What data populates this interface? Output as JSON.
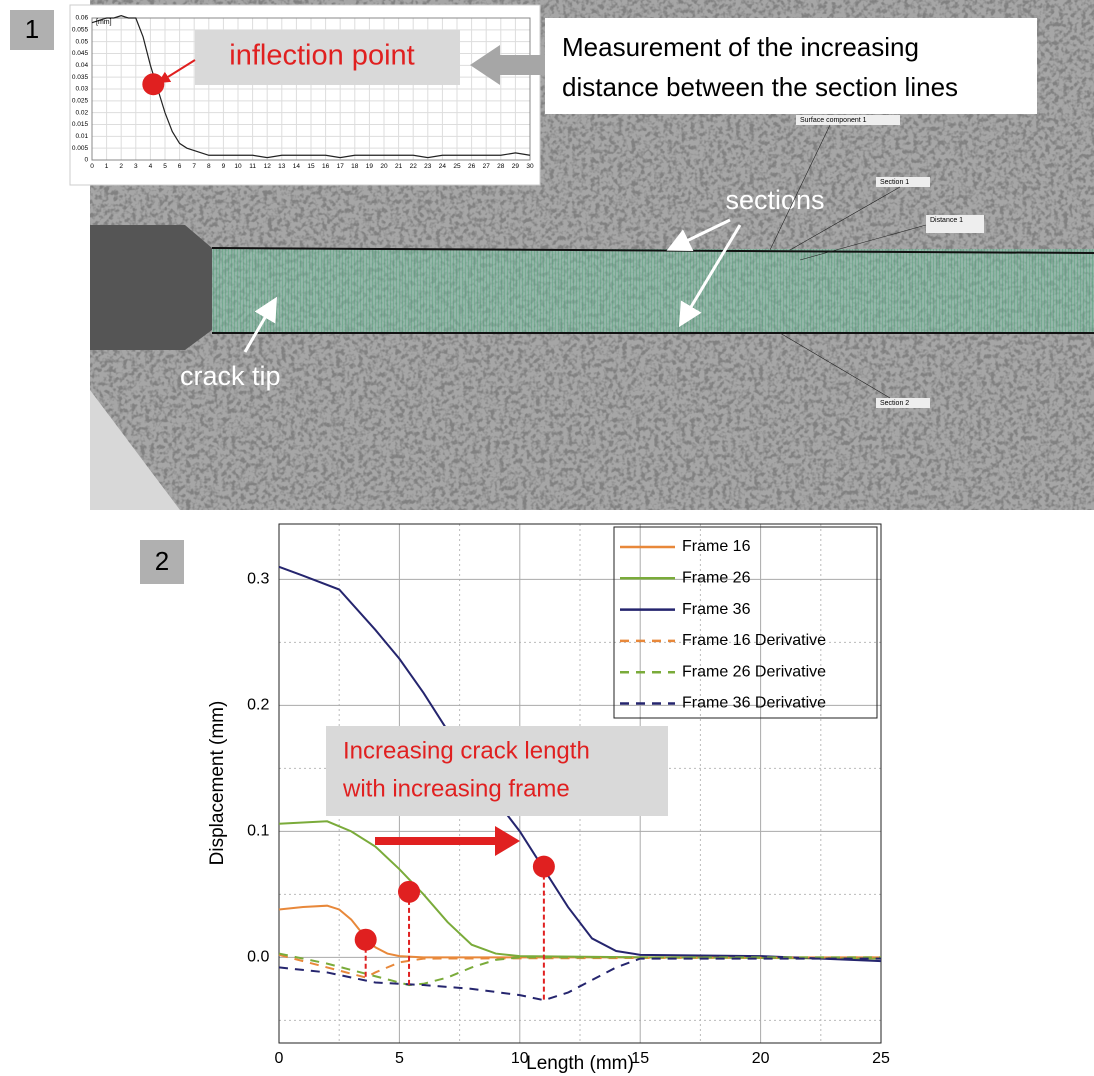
{
  "photo": {
    "panel_label": "1",
    "callout": [
      "Measurement of the increasing",
      "distance between the section lines"
    ],
    "sections_label": "sections",
    "crack_tip_label": "crack tip",
    "tags": [
      "Surface component 1",
      "Section 1",
      "Distance 1",
      "Section 2"
    ]
  },
  "chart_data": [
    {
      "type": "line",
      "ylabel": "[mm]",
      "xlim": [
        0,
        30
      ],
      "ylim": [
        0,
        0.06
      ],
      "xticks": [
        0,
        1,
        2,
        3,
        4,
        5,
        6,
        7,
        8,
        9,
        10,
        11,
        12,
        13,
        14,
        15,
        16,
        17,
        18,
        19,
        20,
        21,
        22,
        23,
        24,
        25,
        26,
        27,
        28,
        29,
        30
      ],
      "yticks": [
        0,
        0.005,
        0.01,
        0.015,
        0.02,
        0.025,
        0.03,
        0.035,
        0.04,
        0.045,
        0.05,
        0.055,
        0.06
      ],
      "grid": true,
      "annotation": "inflection point",
      "marker": {
        "x": 4.2,
        "y": 0.032
      },
      "series": [
        {
          "color": "#222222",
          "dash": false,
          "x": [
            0,
            0.5,
            1,
            1.5,
            2,
            2.5,
            3,
            3.5,
            4,
            4.5,
            5,
            5.5,
            6,
            6.5,
            7,
            7.5,
            8,
            9,
            10,
            11,
            12,
            13,
            14,
            15,
            16,
            17,
            18,
            19,
            20,
            21,
            22,
            23,
            24,
            25,
            26,
            27,
            28,
            29,
            30
          ],
          "values": [
            0.058,
            0.059,
            0.06,
            0.06,
            0.061,
            0.06,
            0.06,
            0.052,
            0.04,
            0.03,
            0.02,
            0.012,
            0.007,
            0.005,
            0.004,
            0.003,
            0.002,
            0.002,
            0.002,
            0.002,
            0.001,
            0.002,
            0.002,
            0.002,
            0.002,
            0.001,
            0.002,
            0.002,
            0.002,
            0.002,
            0.002,
            0.001,
            0.002,
            0.002,
            0.002,
            0.002,
            0.002,
            0.003,
            0.002
          ]
        }
      ]
    },
    {
      "type": "line",
      "panel_label": "2",
      "xlabel": "Length (mm)",
      "ylabel": "Displacement (mm)",
      "xlim": [
        0,
        25
      ],
      "ylim": [
        -0.068,
        0.344
      ],
      "xticks": [
        0,
        5,
        10,
        15,
        20,
        25
      ],
      "yticks": [
        {
          "value": 0,
          "label": "0.0"
        },
        0.1,
        0.2,
        0.3
      ],
      "xminor": [
        2.5,
        7.5,
        12.5,
        17.5,
        22.5
      ],
      "yminor": [
        -0.05,
        0.05,
        0.15,
        0.25
      ],
      "grid": true,
      "annotation": [
        "Increasing crack length",
        "with increasing frame"
      ],
      "markers": [
        {
          "x": 3.6,
          "y": 0.014,
          "drop_to": -0.016
        },
        {
          "x": 5.4,
          "y": 0.052,
          "drop_to": -0.022
        },
        {
          "x": 11,
          "y": 0.072,
          "drop_to": -0.034
        }
      ],
      "series": [
        {
          "name": "Frame 16",
          "color": "#e8883a",
          "dash": false,
          "x": [
            0,
            1,
            2,
            2.5,
            3,
            3.5,
            4,
            4.5,
            5,
            6,
            10,
            25
          ],
          "values": [
            0.038,
            0.04,
            0.041,
            0.038,
            0.03,
            0.018,
            0.008,
            0.003,
            0.001,
            0,
            0,
            0
          ]
        },
        {
          "name": "Frame 26",
          "color": "#7aab3a",
          "dash": false,
          "x": [
            0,
            1,
            2,
            3,
            4,
            5,
            6,
            7,
            8,
            9,
            10,
            15,
            25
          ],
          "values": [
            0.106,
            0.107,
            0.108,
            0.1,
            0.088,
            0.07,
            0.05,
            0.028,
            0.01,
            0.003,
            0.001,
            0,
            -0.001
          ]
        },
        {
          "name": "Frame 36",
          "color": "#25256e",
          "dash": false,
          "x": [
            0,
            1,
            2.5,
            4,
            5,
            6,
            7,
            8,
            9,
            10,
            11,
            12,
            13,
            14,
            15,
            20,
            25
          ],
          "values": [
            0.31,
            0.303,
            0.292,
            0.26,
            0.237,
            0.21,
            0.18,
            0.15,
            0.125,
            0.1,
            0.07,
            0.04,
            0.015,
            0.005,
            0.002,
            0.001,
            -0.003
          ]
        },
        {
          "name": "Frame 16 Derivative",
          "color": "#e8883a",
          "dash": true,
          "x": [
            0,
            1,
            2,
            3,
            3.6,
            4,
            5,
            6,
            25
          ],
          "values": [
            0.002,
            -0.003,
            -0.008,
            -0.013,
            -0.016,
            -0.012,
            -0.004,
            -0.001,
            0
          ]
        },
        {
          "name": "Frame 26 Derivative",
          "color": "#7aab3a",
          "dash": true,
          "x": [
            0,
            2,
            4,
            5.4,
            6,
            7,
            8,
            9,
            10,
            25
          ],
          "values": [
            0.003,
            -0.005,
            -0.015,
            -0.022,
            -0.021,
            -0.016,
            -0.008,
            -0.002,
            0,
            0
          ]
        },
        {
          "name": "Frame 36 Derivative",
          "color": "#25256e",
          "dash": true,
          "x": [
            0,
            2,
            4,
            6,
            8,
            10,
            11,
            12,
            13,
            14,
            15,
            25
          ],
          "values": [
            -0.008,
            -0.012,
            -0.02,
            -0.022,
            -0.025,
            -0.03,
            -0.034,
            -0.028,
            -0.018,
            -0.008,
            -0.001,
            -0.001
          ]
        }
      ]
    }
  ]
}
